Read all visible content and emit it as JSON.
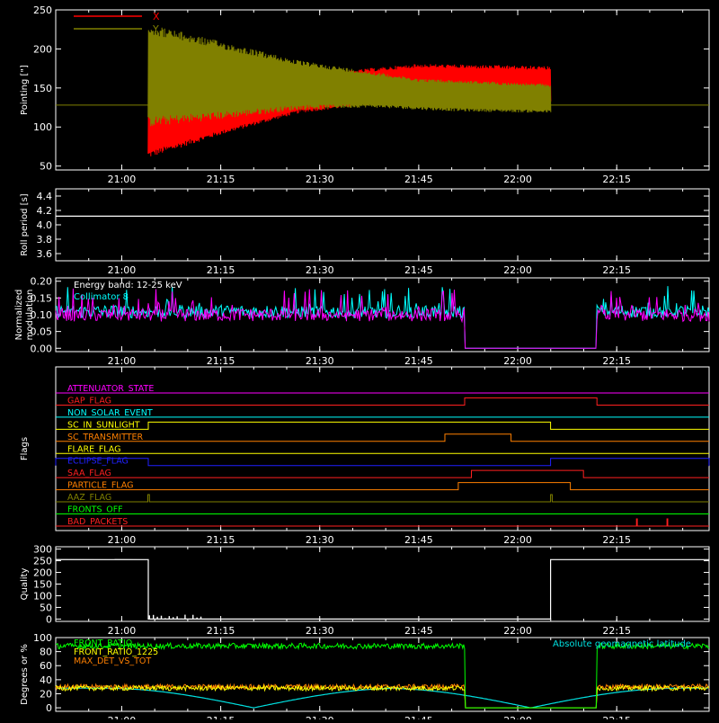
{
  "chart_data": [
    {
      "type": "line",
      "ylabel": "Pointing [\"]",
      "ylim": [
        45,
        250
      ],
      "yticks": [
        50,
        100,
        150,
        200,
        250
      ],
      "xticks": [
        "21:00",
        "21:15",
        "21:30",
        "21:45",
        "22:00",
        "22:15"
      ],
      "xlim_minutes": [
        20.8333,
        22.4833
      ],
      "legend_position": "top-left",
      "series": [
        {
          "name": "X",
          "color": "#ff0000",
          "baseline": 128,
          "data_start": "21:04",
          "data_end": "22:05",
          "envelope_low": [
            [
              21.067,
              60
            ],
            [
              21.25,
              90
            ],
            [
              21.45,
              118
            ],
            [
              21.62,
              128
            ],
            [
              21.75,
              133
            ],
            [
              21.85,
              132
            ],
            [
              22.083,
              128
            ]
          ],
          "envelope_high": [
            [
              21.067,
              150
            ],
            [
              21.25,
              145
            ],
            [
              21.45,
              165
            ],
            [
              21.62,
              175
            ],
            [
              21.75,
              181
            ],
            [
              21.85,
              180
            ],
            [
              22.083,
              178
            ]
          ]
        },
        {
          "name": "Y",
          "color": "#808000",
          "baseline": 128,
          "data_start": "21:04",
          "data_end": "22:05",
          "envelope_low": [
            [
              21.067,
              100
            ],
            [
              21.25,
              110
            ],
            [
              21.45,
              122
            ],
            [
              21.62,
              125
            ],
            [
              21.75,
              122
            ],
            [
              21.85,
              120
            ],
            [
              22.083,
              118
            ]
          ],
          "envelope_high": [
            [
              21.067,
              232
            ],
            [
              21.25,
              210
            ],
            [
              21.45,
              185
            ],
            [
              21.62,
              172
            ],
            [
              21.75,
              162
            ],
            [
              21.85,
              160
            ],
            [
              22.083,
              155
            ]
          ]
        }
      ]
    },
    {
      "type": "line",
      "ylabel": "Roll period [s]",
      "ylim": [
        3.5,
        4.5
      ],
      "yticks": [
        3.6,
        3.8,
        4.0,
        4.2,
        4.4
      ],
      "xticks": [
        "21:00",
        "21:15",
        "21:30",
        "21:45",
        "22:00",
        "22:15"
      ],
      "series": [
        {
          "name": "",
          "color": "#ffffff",
          "value": 4.12
        }
      ]
    },
    {
      "type": "line",
      "ylabel": "Normalized\nmodulation",
      "ylim": [
        -0.01,
        0.21
      ],
      "yticks": [
        "0.00",
        "0.05",
        "0.10",
        "0.15",
        "0.20"
      ],
      "xticks": [
        "21:00",
        "21:15",
        "21:30",
        "21:45",
        "22:00",
        "22:15"
      ],
      "annotations": [
        "Energy band: 12-25 keV",
        "Collimator 8"
      ],
      "series": [
        {
          "name": "Collimator 8",
          "color": "#00ffff",
          "mean": 0.11,
          "gaps": [
            [
              21.866,
              22.2
            ]
          ]
        },
        {
          "name": "",
          "color": "#ff00ff",
          "mean": 0.1,
          "gaps": [
            [
              21.866,
              22.2
            ]
          ]
        }
      ]
    },
    {
      "type": "line",
      "ylabel": "Flags",
      "xticks": [
        "21:00",
        "21:15",
        "21:30",
        "21:45",
        "22:00",
        "22:15"
      ],
      "flags": [
        {
          "name": "ATTENUATOR_STATE",
          "color": "#ff00ff",
          "on": []
        },
        {
          "name": "GAP_FLAG",
          "color": "#ff2020",
          "on": [
            [
              21.866,
              22.2
            ]
          ]
        },
        {
          "name": "NON_SOLAR_EVENT",
          "color": "#00ffff",
          "on": []
        },
        {
          "name": "SC_IN_SUNLIGHT",
          "color": "#ffff00",
          "on": [
            [
              21.067,
              22.083
            ]
          ]
        },
        {
          "name": "SC_TRANSMITTER",
          "color": "#ff8000",
          "on": [
            [
              21.816,
              21.983
            ]
          ]
        },
        {
          "name": "FLARE_FLAG",
          "color": "#ffff00",
          "on": []
        },
        {
          "name": "ECLIPSE_FLAG",
          "color": "#2020ff",
          "on": [
            [
              20.833,
              21.067
            ],
            [
              22.083,
              22.483
            ]
          ]
        },
        {
          "name": "SAA_FLAG",
          "color": "#ff2020",
          "on": [
            [
              21.883,
              22.166
            ]
          ]
        },
        {
          "name": "PARTICLE_FLAG",
          "color": "#ff8000",
          "on": [
            [
              21.85,
              22.133
            ]
          ]
        },
        {
          "name": "AAZ_FLAG",
          "color": "#808000",
          "on": [
            [
              21.066,
              21.07
            ],
            [
              22.083,
              22.087
            ]
          ]
        },
        {
          "name": "FRONTS_OFF",
          "color": "#00ff00",
          "on": []
        },
        {
          "name": "BAD_PACKETS",
          "color": "#ff2020",
          "on": [
            [
              22.3,
              22.302
            ],
            [
              22.377,
              22.379
            ]
          ]
        }
      ]
    },
    {
      "type": "line",
      "ylabel": "Quality",
      "ylim": [
        -10,
        310
      ],
      "yticks": [
        0,
        50,
        100,
        150,
        200,
        250,
        300
      ],
      "xticks": [
        "21:00",
        "21:15",
        "21:30",
        "21:45",
        "22:00",
        "22:15"
      ],
      "series": [
        {
          "name": "",
          "color": "#ffffff",
          "steps": [
            [
              20.833,
              255
            ],
            [
              21.067,
              0
            ],
            [
              22.083,
              255
            ],
            [
              22.483,
              255
            ]
          ]
        }
      ]
    },
    {
      "type": "line",
      "ylabel": "Degrees or %",
      "ylim": [
        -5,
        100
      ],
      "yticks": [
        0,
        20,
        40,
        60,
        80,
        100
      ],
      "xticks": [
        "21:00",
        "21:15",
        "21:30",
        "21:45",
        "22:00",
        "22:15"
      ],
      "series": [
        {
          "name": "FRONT_RATIO",
          "color": "#00ff00",
          "mean": 88,
          "gaps": [
            [
              21.866,
              22.2
            ]
          ]
        },
        {
          "name": "FRONT_RATIO_1225",
          "color": "#ffff00",
          "mean": 28,
          "gaps": [
            [
              21.866,
              22.2
            ]
          ]
        },
        {
          "name": "MAX_DET_VS_TOT",
          "color": "#ff8000",
          "mean": 30,
          "gaps": [
            [
              21.866,
              22.2
            ]
          ]
        },
        {
          "name": "Absolute geomagnetic latitude",
          "color": "#00e0e0",
          "valleys": [
            21.333,
            22.033
          ],
          "peak": 28
        }
      ]
    }
  ]
}
